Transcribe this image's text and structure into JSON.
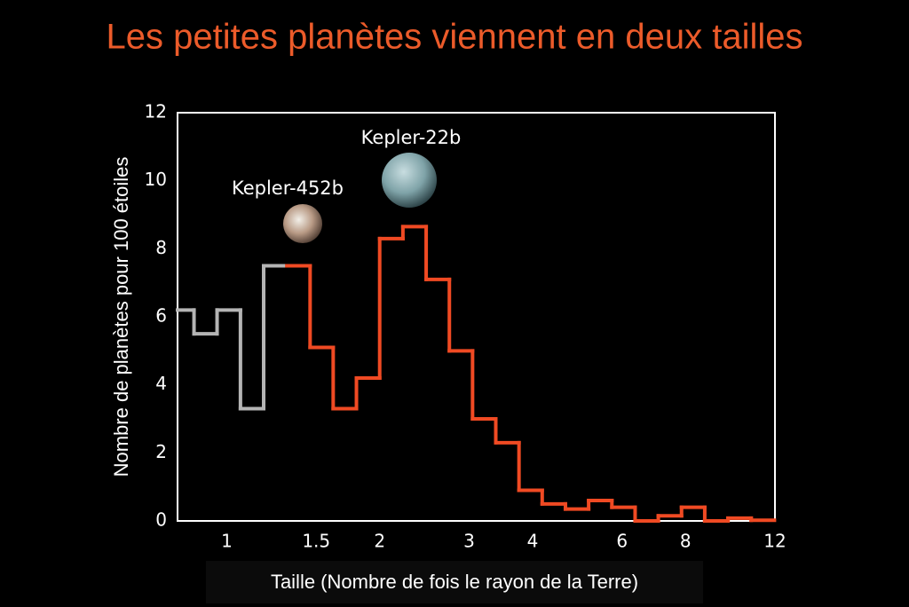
{
  "chart_data": {
    "type": "histogram",
    "title": "Les petites planètes viennent en deux tailles",
    "x_label": "Taille (Nombre de fois le rayon de la Terre)",
    "y_label": "Nombre de planètes pour 100 étoiles",
    "annotations": [
      "Kepler-452b",
      "Kepler-22b"
    ],
    "x_scale": "log",
    "xlim": [
      0.8,
      12
    ],
    "ylim": [
      0,
      12
    ],
    "xticks": [
      1,
      1.5,
      2,
      3,
      4,
      6,
      8,
      12
    ],
    "yticks": [
      0,
      2,
      4,
      6,
      8,
      10,
      12
    ],
    "grid": false,
    "series": [
      {
        "color": "#b4b4b4",
        "bins": [
          0.8,
          0.862,
          0.957,
          1.064,
          1.182,
          1.313
        ],
        "values": [
          6.2,
          5.5,
          6.2,
          3.3,
          7.5
        ]
      },
      {
        "color": "#f04a23",
        "bins": [
          1.313,
          1.459,
          1.62,
          1.8,
          2,
          2.222,
          2.469,
          2.743,
          3.047,
          3.385,
          3.761,
          4.178,
          4.642,
          5.157,
          5.73,
          6.366,
          7.072,
          7.857,
          8.729,
          9.698,
          10.775,
          11.97
        ],
        "values": [
          7.5,
          5.1,
          3.3,
          4.2,
          8.3,
          8.65,
          7.1,
          5.0,
          3.0,
          2.3,
          0.9,
          0.5,
          0.35,
          0.6,
          0.4,
          0,
          0.15,
          0.4,
          0,
          0.08,
          0.02
        ]
      }
    ]
  }
}
